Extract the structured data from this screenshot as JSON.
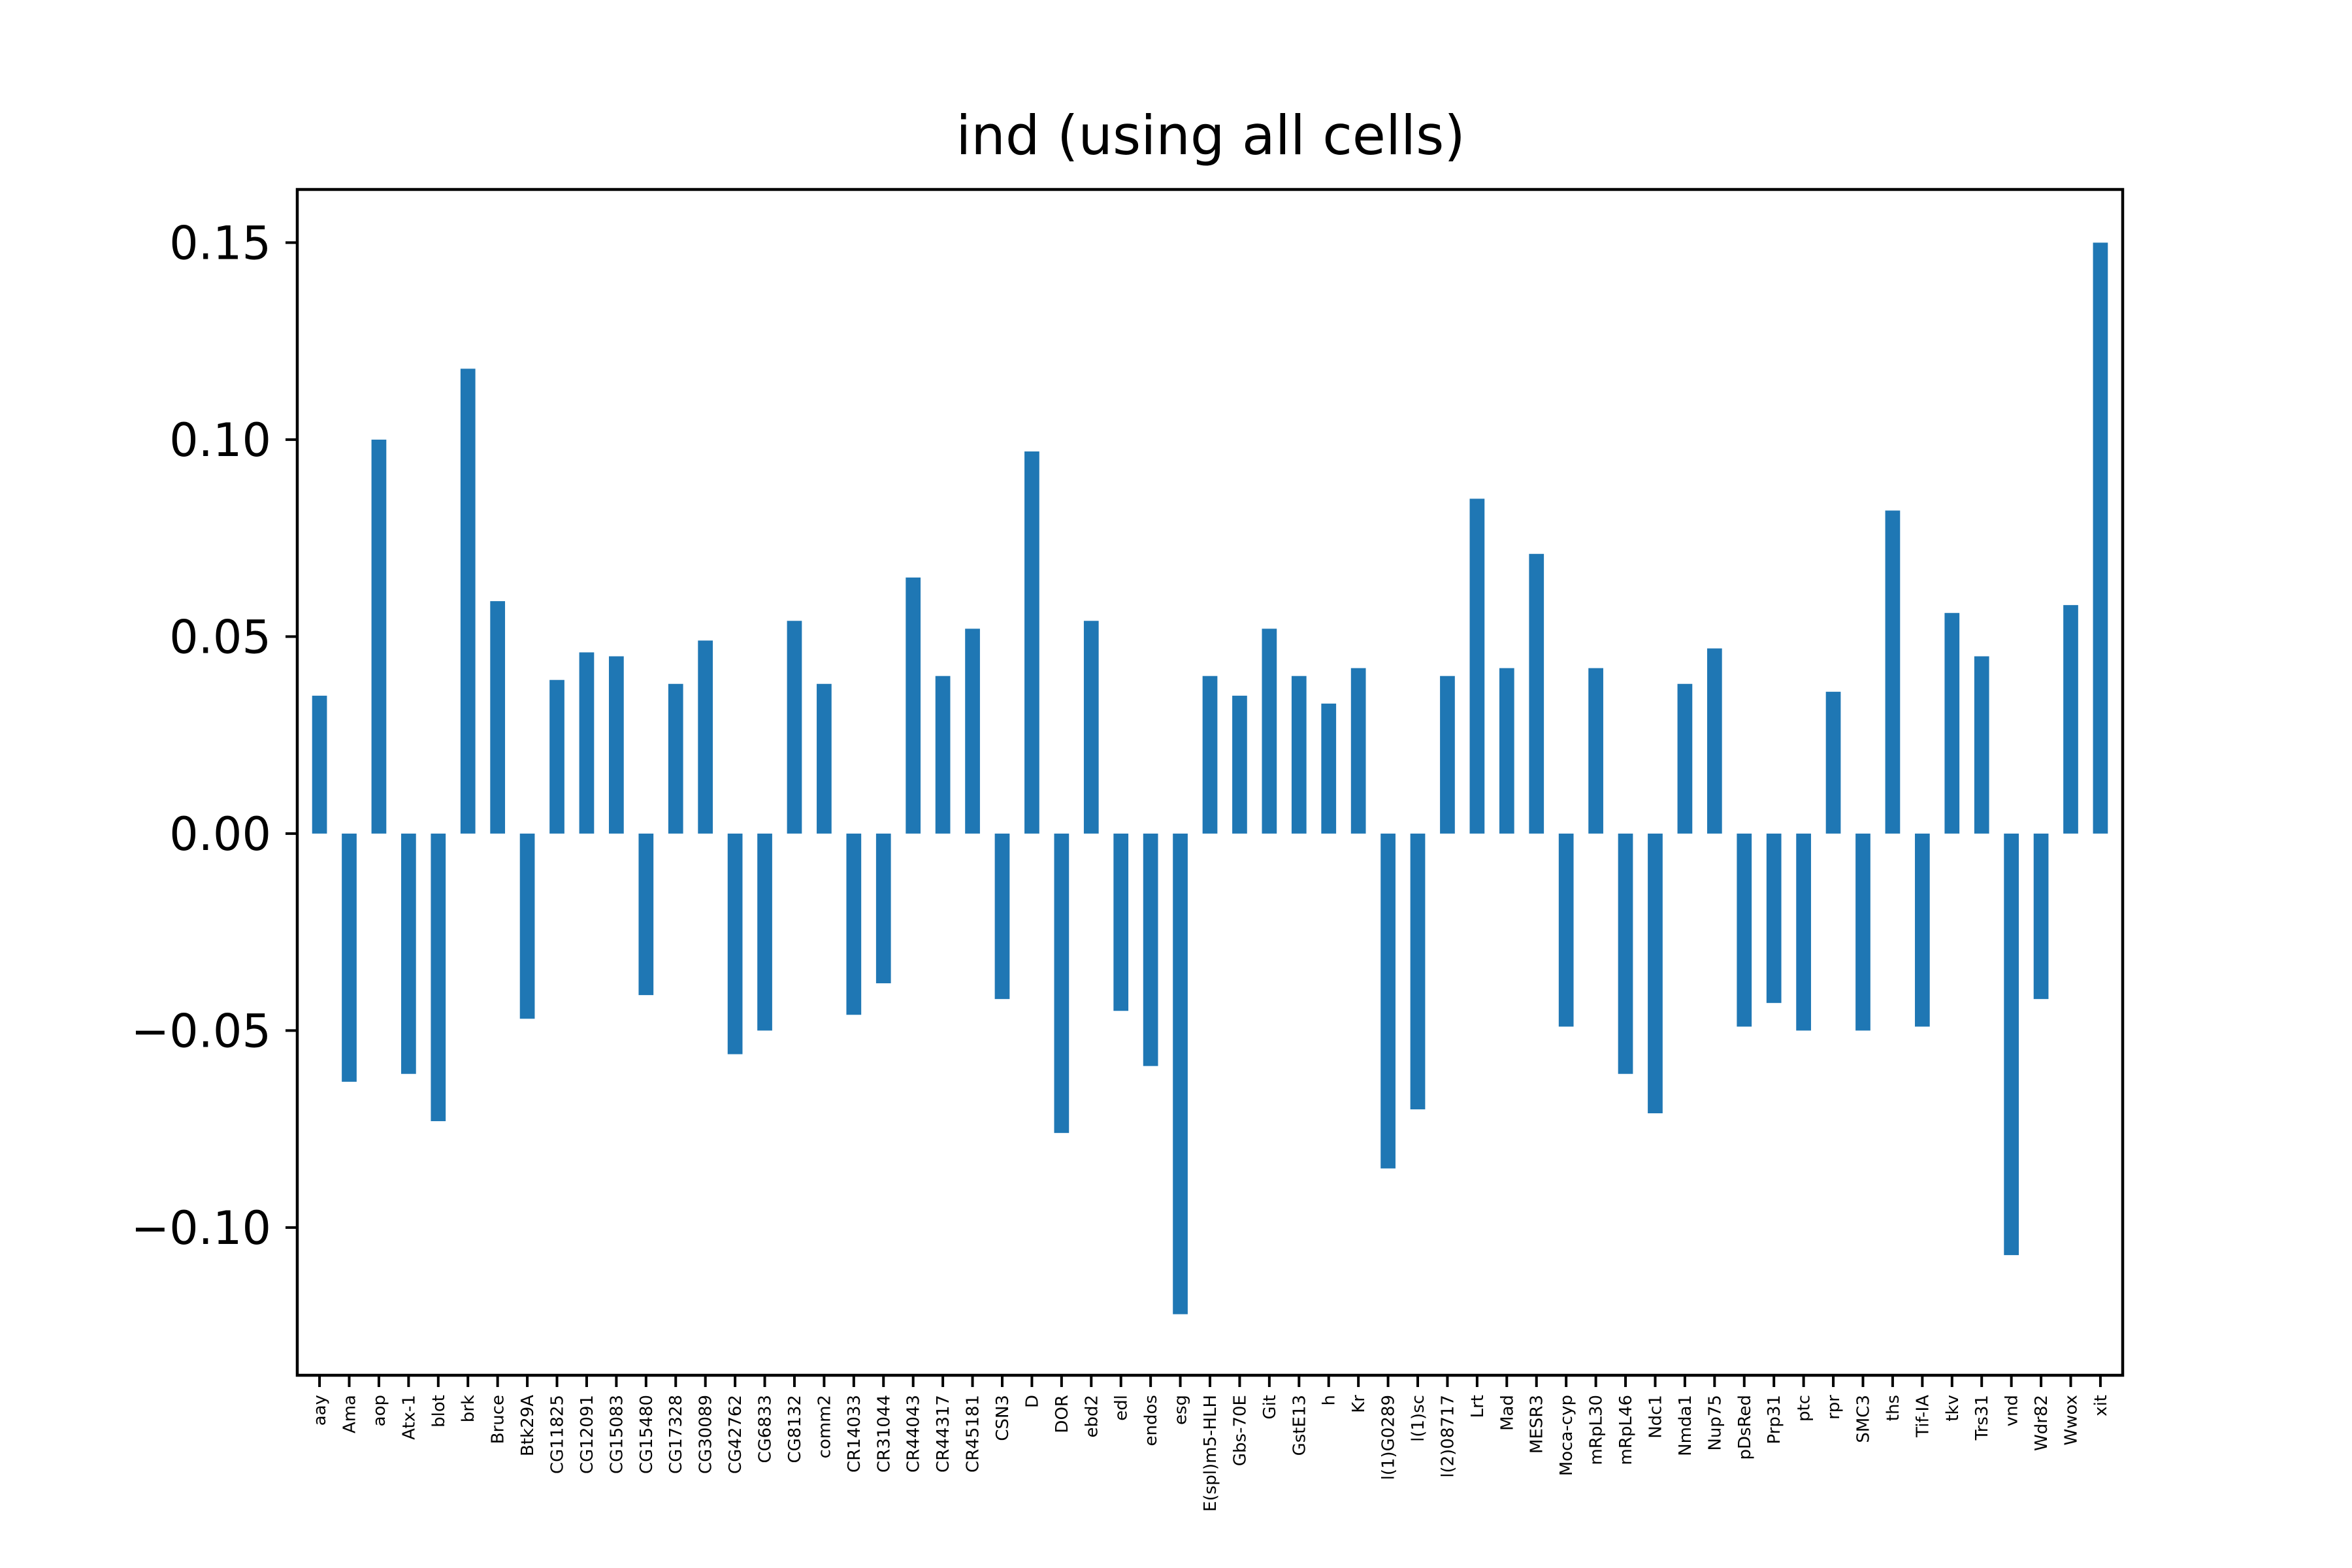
{
  "chart_data": {
    "type": "bar",
    "title": "ind (using all cells)",
    "xlabel": "",
    "ylabel": "",
    "ylim": [
      -0.1375,
      0.1635
    ],
    "yticks": [
      -0.1,
      -0.05,
      0.0,
      0.05,
      0.1,
      0.15
    ],
    "ytick_labels": [
      "−0.10",
      "−0.05",
      "0.00",
      "0.05",
      "0.10",
      "0.15"
    ],
    "grid": false,
    "legend": "none",
    "bar_color": "#1f77b4",
    "categories": [
      "aay",
      "Ama",
      "aop",
      "Atx-1",
      "blot",
      "brk",
      "Bruce",
      "Btk29A",
      "CG11825",
      "CG12091",
      "CG15083",
      "CG15480",
      "CG17328",
      "CG30089",
      "CG42762",
      "CG6833",
      "CG8132",
      "comm2",
      "CR14033",
      "CR31044",
      "CR44043",
      "CR44317",
      "CR45181",
      "CSN3",
      "D",
      "DOR",
      "ebd2",
      "edl",
      "endos",
      "esg",
      "E(spl)m5-HLH",
      "Gbs-70E",
      "Git",
      "GstE13",
      "h",
      "Kr",
      "l(1)G0289",
      "l(1)sc",
      "l(2)08717",
      "Lrt",
      "Mad",
      "MESR3",
      "Moca-cyp",
      "mRpL30",
      "mRpL46",
      "Ndc1",
      "Nmda1",
      "Nup75",
      "pDsRed",
      "Prp31",
      "ptc",
      "rpr",
      "SMC3",
      "ths",
      "Tif-IA",
      "tkv",
      "Trs31",
      "vnd",
      "Wdr82",
      "Wwox",
      "xit"
    ],
    "values": [
      0.035,
      -0.063,
      0.1,
      -0.061,
      -0.073,
      0.118,
      0.059,
      -0.047,
      0.039,
      0.046,
      0.045,
      -0.041,
      0.038,
      0.049,
      -0.056,
      -0.05,
      0.054,
      0.038,
      -0.046,
      -0.038,
      0.065,
      0.04,
      0.052,
      -0.042,
      0.097,
      -0.076,
      0.054,
      -0.045,
      -0.059,
      -0.122,
      0.04,
      0.035,
      0.052,
      0.04,
      0.033,
      0.042,
      -0.085,
      -0.07,
      0.04,
      0.085,
      0.042,
      0.071,
      -0.049,
      0.042,
      -0.061,
      -0.071,
      0.038,
      0.047,
      -0.049,
      -0.043,
      -0.05,
      0.036,
      -0.05,
      0.082,
      -0.049,
      0.056,
      0.045,
      -0.107,
      -0.042,
      0.058,
      0.15
    ]
  }
}
